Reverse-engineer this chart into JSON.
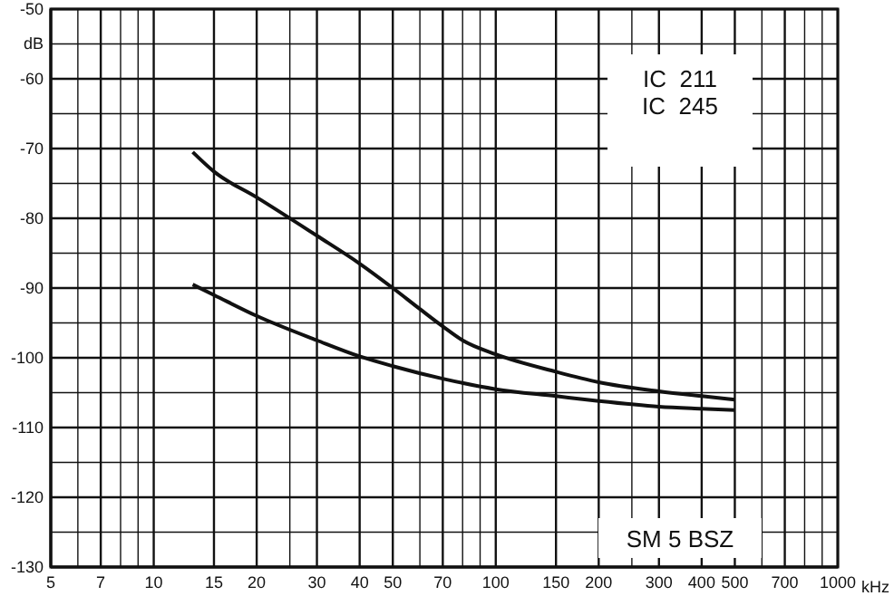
{
  "chart_data": {
    "type": "line",
    "log": "x",
    "grid": true,
    "marker": "none",
    "line_style": "solid",
    "xlim": [
      5,
      1000
    ],
    "ylim": [
      -130,
      -50
    ],
    "xticks": [
      5,
      {
        "value": 6,
        "label": null
      },
      7,
      {
        "value": 8,
        "label": null
      },
      {
        "value": 9,
        "label": null
      },
      10,
      15,
      20,
      {
        "value": 25,
        "label": null
      },
      30,
      40,
      50,
      {
        "value": 60,
        "label": null
      },
      70,
      {
        "value": 80,
        "label": null
      },
      {
        "value": 90,
        "label": null
      },
      100,
      150,
      200,
      {
        "value": 250,
        "label": null
      },
      300,
      400,
      500,
      {
        "value": 600,
        "label": null
      },
      700,
      {
        "value": 800,
        "label": null
      },
      {
        "value": 900,
        "label": null
      },
      1000
    ],
    "xlabel": "kHz",
    "yticks": [
      -130,
      {
        "value": -125,
        "label": null
      },
      -120,
      {
        "value": -115,
        "label": null
      },
      -110,
      {
        "value": -105,
        "label": null
      },
      -100,
      {
        "value": -95,
        "label": null
      },
      -90,
      {
        "value": -85,
        "label": null
      },
      -80,
      {
        "value": -75,
        "label": null
      },
      -70,
      {
        "value": -65,
        "label": null
      },
      -60,
      {
        "value": -55,
        "label": "dB"
      },
      -50
    ],
    "annotations": [
      "IC  211\nIC  245",
      "SM 5 BSZ"
    ],
    "series": [
      {
        "color": "#111111",
        "x": [
          13,
          15,
          20,
          30,
          40,
          50,
          60,
          70,
          80,
          100,
          150,
          200,
          300,
          400,
          500
        ],
        "values": [
          -70.5,
          -73.3,
          -77,
          -82.5,
          -86.5,
          -90,
          -93,
          -95.5,
          -97.5,
          -99.5,
          -102,
          -103.5,
          -104.8,
          -105.5,
          -106
        ]
      },
      {
        "color": "#111111",
        "x": [
          13,
          15,
          20,
          30,
          40,
          50,
          70,
          100,
          150,
          200,
          300,
          400,
          500
        ],
        "values": [
          -89.5,
          -91,
          -94,
          -97.5,
          -99.8,
          -101.2,
          -103,
          -104.5,
          -105.5,
          -106.2,
          -107,
          -107.3,
          -107.5
        ]
      }
    ]
  }
}
